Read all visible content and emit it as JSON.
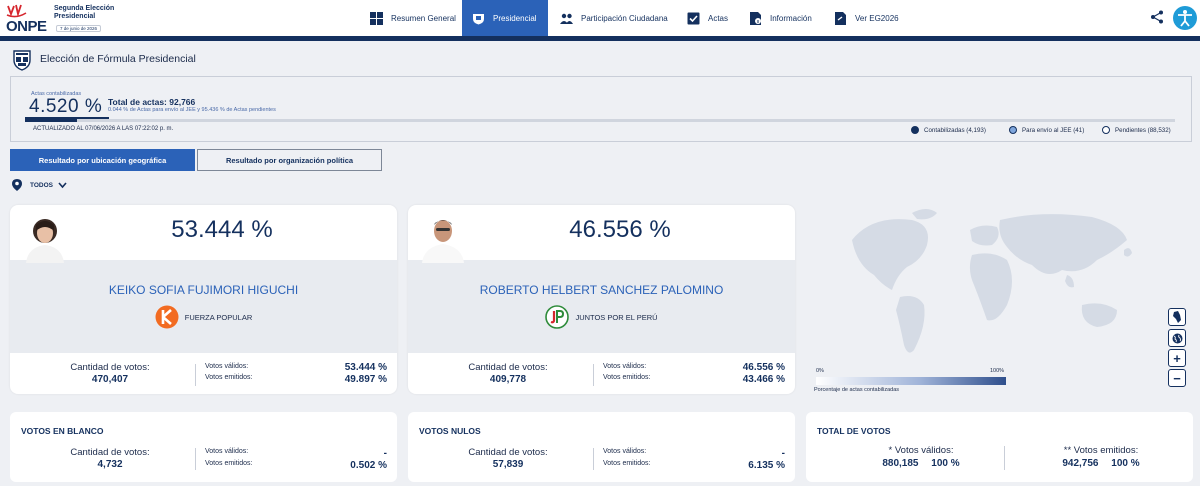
{
  "header": {
    "logo_text": "ONPE",
    "logo_title": "Segunda Elección Presidencial",
    "logo_date": "7 de junio de 2026",
    "nav": [
      {
        "label": "Resumen General"
      },
      {
        "label": "Presidencial",
        "active": true
      },
      {
        "label": "Participación Ciudadana"
      },
      {
        "label": "Actas"
      },
      {
        "label": "Información"
      },
      {
        "label": "Ver EG2026"
      }
    ],
    "icons": [
      "share-icon",
      "accessibility-icon"
    ]
  },
  "page_title": "Elección de Fórmula Presidencial",
  "summary": {
    "label": "Actas contabilizadas",
    "percentage": "4.520 %",
    "percentage_value": 4.52,
    "total": "Total de actas: 92,766",
    "subtext": "0.044 % de Actas para envío al JEE y 95.436 % de Actas pendientes",
    "updated": "ACTUALIZADO AL 07/06/2026 A LAS 07:22:02 p. m.",
    "legend": [
      {
        "label": "Contabilizadas (4,193)",
        "color": "#14305e"
      },
      {
        "label": "Para envío al JEE (41)",
        "color": "#7fa6dc"
      },
      {
        "label": "Pendientes (88,532)",
        "color": "#ffffff"
      }
    ]
  },
  "tabs": [
    {
      "label": "Resultado por ubicación geográfica",
      "active": true
    },
    {
      "label": "Resultado por organización política",
      "active": false
    }
  ],
  "filter": {
    "label": "TODOS"
  },
  "candidates": [
    {
      "percentage": "53.444 %",
      "name": "KEIKO SOFIA FUJIMORI HIGUCHI",
      "party": "FUERZA POPULAR",
      "party_color": "#f26b21",
      "votes_label": "Cantidad de votos:",
      "votes": "470,407",
      "valid_label": "Votos válidos:",
      "valid": "53.444 %",
      "emitted_label": "Votos emitidos:",
      "emitted": "49.897 %"
    },
    {
      "percentage": "46.556 %",
      "name": "ROBERTO HELBERT SANCHEZ PALOMINO",
      "party": "JUNTOS POR EL PERÚ",
      "party_color": "#2e8b3a",
      "votes_label": "Cantidad de votos:",
      "votes": "409,778",
      "valid_label": "Votos válidos:",
      "valid": "46.556 %",
      "emitted_label": "Votos emitidos:",
      "emitted": "43.466 %"
    }
  ],
  "map": {
    "scale_min": "0%",
    "scale_max": "100%",
    "caption": "Porcentaje de actas contabilizadas",
    "buttons": [
      "peru-map-icon",
      "globe-icon",
      "zoom-in-icon",
      "zoom-out-icon"
    ],
    "zoom_in": "+",
    "zoom_out": "−"
  },
  "blank": {
    "title": "VOTOS EN BLANCO",
    "votes_label": "Cantidad de votos:",
    "votes": "4,732",
    "valid_label": "Votos válidos:",
    "valid": "-",
    "emitted_label": "Votos emitidos:",
    "emitted": "0.502 %"
  },
  "null": {
    "title": "VOTOS NULOS",
    "votes_label": "Cantidad de votos:",
    "votes": "57,839",
    "valid_label": "Votos válidos:",
    "valid": "-",
    "emitted_label": "Votos emitidos:",
    "emitted": "6.135 %"
  },
  "total": {
    "title": "TOTAL DE VOTOS",
    "valid_label": "* Votos válidos:",
    "valid_count": "880,185",
    "valid_pct": "100 %",
    "emitted_label": "** Votos emitidos:",
    "emitted_count": "942,756",
    "emitted_pct": "100 %"
  }
}
